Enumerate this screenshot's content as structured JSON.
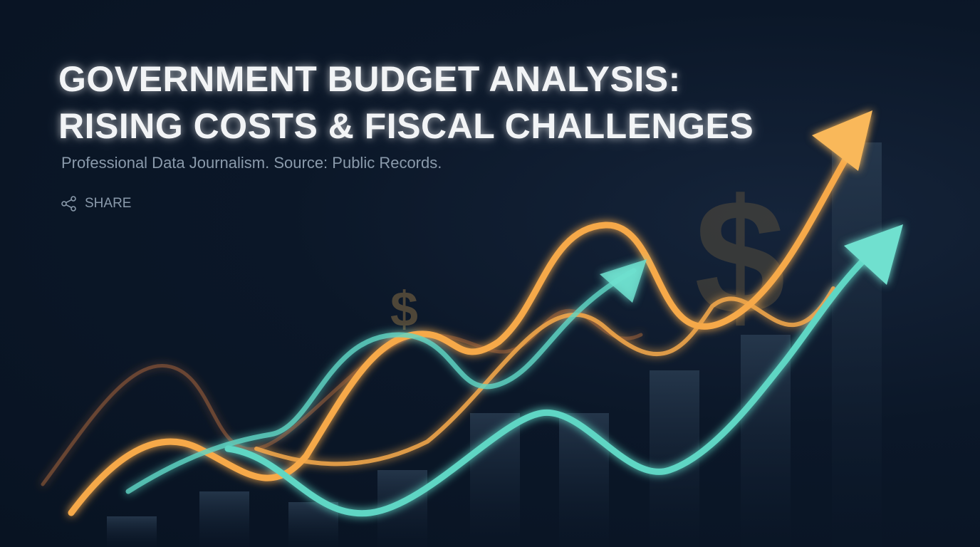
{
  "header": {
    "title_line1": "GOVERNMENT BUDGET ANALYSIS:",
    "title_line2": "RISING COSTS & FISCAL CHALLENGES",
    "subtitle": "Professional Data Journalism. Source: Public Records."
  },
  "share": {
    "label": "SHARE",
    "icon": "share-icon"
  },
  "colors": {
    "background": "#0b1728",
    "orange": "#f6a94a",
    "teal": "#5fd6c4",
    "text_muted": "#8a9aab"
  }
}
